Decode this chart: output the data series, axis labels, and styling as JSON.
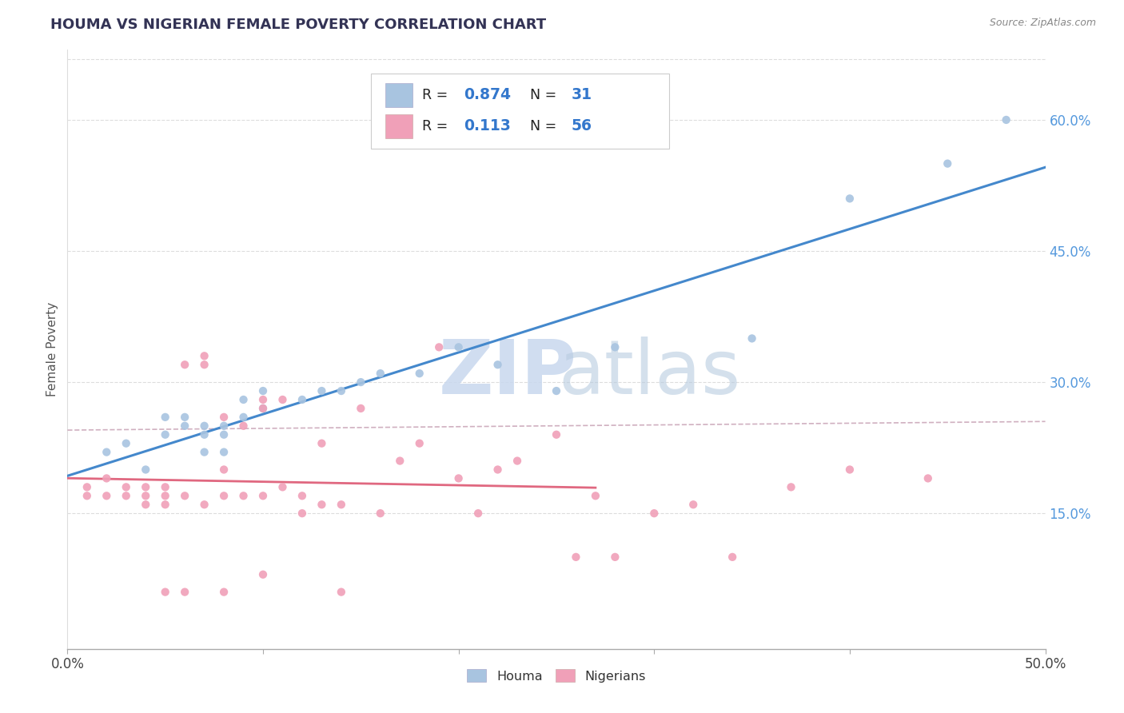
{
  "title": "HOUMA VS NIGERIAN FEMALE POVERTY CORRELATION CHART",
  "source": "Source: ZipAtlas.com",
  "ylabel": "Female Poverty",
  "xlim": [
    0.0,
    0.5
  ],
  "ylim": [
    -0.005,
    0.68
  ],
  "xticks": [
    0.0,
    0.1,
    0.2,
    0.3,
    0.4,
    0.5
  ],
  "xticklabels": [
    "0.0%",
    "",
    "",
    "",
    "",
    "50.0%"
  ],
  "yticks_right": [
    0.15,
    0.3,
    0.45,
    0.6
  ],
  "ytickslabels_right": [
    "15.0%",
    "30.0%",
    "45.0%",
    "60.0%"
  ],
  "houma_color": "#a8c4e0",
  "nigerian_color": "#f0a0b8",
  "houma_line_color": "#4488cc",
  "nigerian_line_color": "#e06880",
  "conf_band_color": "#d0b0c0",
  "background_color": "#ffffff",
  "houma_x": [
    0.02,
    0.03,
    0.04,
    0.05,
    0.05,
    0.06,
    0.06,
    0.07,
    0.07,
    0.07,
    0.08,
    0.08,
    0.08,
    0.09,
    0.09,
    0.1,
    0.1,
    0.12,
    0.13,
    0.14,
    0.15,
    0.16,
    0.18,
    0.2,
    0.22,
    0.25,
    0.28,
    0.35,
    0.4,
    0.45,
    0.48
  ],
  "houma_y": [
    0.22,
    0.23,
    0.2,
    0.24,
    0.26,
    0.25,
    0.26,
    0.22,
    0.24,
    0.25,
    0.22,
    0.24,
    0.25,
    0.26,
    0.28,
    0.27,
    0.29,
    0.28,
    0.29,
    0.29,
    0.3,
    0.31,
    0.31,
    0.34,
    0.32,
    0.29,
    0.34,
    0.35,
    0.51,
    0.55,
    0.6
  ],
  "nigerian_x": [
    0.01,
    0.01,
    0.02,
    0.02,
    0.03,
    0.03,
    0.04,
    0.04,
    0.04,
    0.05,
    0.05,
    0.05,
    0.06,
    0.06,
    0.07,
    0.07,
    0.08,
    0.08,
    0.08,
    0.09,
    0.09,
    0.1,
    0.1,
    0.1,
    0.11,
    0.11,
    0.12,
    0.12,
    0.13,
    0.13,
    0.14,
    0.15,
    0.16,
    0.17,
    0.18,
    0.19,
    0.2,
    0.21,
    0.22,
    0.23,
    0.25,
    0.26,
    0.27,
    0.28,
    0.3,
    0.32,
    0.34,
    0.37,
    0.4,
    0.44,
    0.05,
    0.06,
    0.07,
    0.08,
    0.14,
    0.1
  ],
  "nigerian_y": [
    0.17,
    0.18,
    0.17,
    0.19,
    0.17,
    0.18,
    0.16,
    0.17,
    0.18,
    0.17,
    0.18,
    0.16,
    0.17,
    0.32,
    0.32,
    0.16,
    0.17,
    0.2,
    0.26,
    0.17,
    0.25,
    0.17,
    0.27,
    0.28,
    0.18,
    0.28,
    0.15,
    0.17,
    0.16,
    0.23,
    0.16,
    0.27,
    0.15,
    0.21,
    0.23,
    0.34,
    0.19,
    0.15,
    0.2,
    0.21,
    0.24,
    0.1,
    0.17,
    0.1,
    0.15,
    0.16,
    0.1,
    0.18,
    0.2,
    0.19,
    0.06,
    0.06,
    0.33,
    0.06,
    0.06,
    0.08
  ]
}
